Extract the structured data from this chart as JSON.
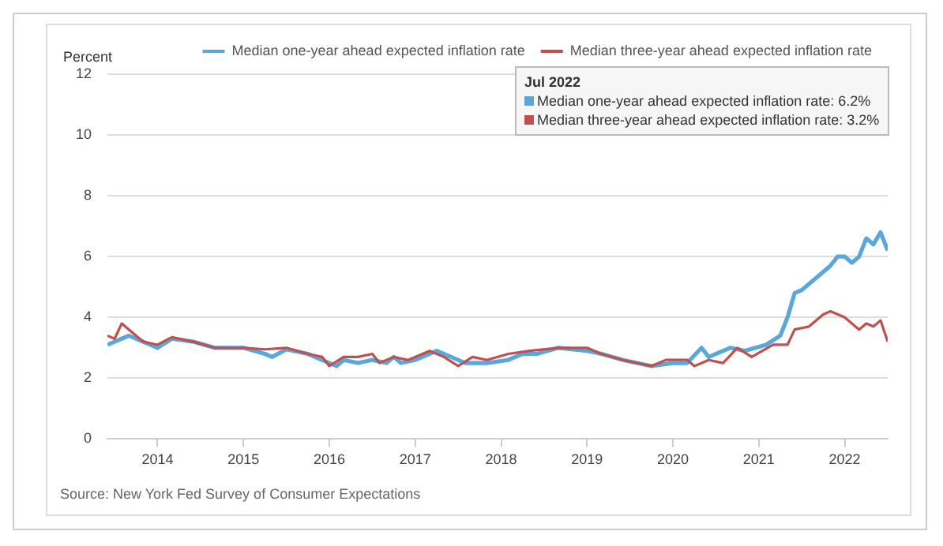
{
  "chart_data": {
    "type": "line",
    "ylabel": "Percent",
    "xlim": [
      "2013-06",
      "2022-07"
    ],
    "xticks": [
      "2014",
      "2015",
      "2016",
      "2017",
      "2018",
      "2019",
      "2020",
      "2021",
      "2022"
    ],
    "ylim": [
      0,
      12
    ],
    "yticks": [
      0,
      2,
      4,
      6,
      8,
      10,
      12
    ],
    "grid": "y",
    "legend": "top",
    "marker": "none",
    "line_style": "solid",
    "annotations": [
      "Jul 2022",
      "Median one-year ahead expected inflation rate: 6.2%",
      "Median three-year ahead expected inflation rate: 3.2%",
      "Source: New York Fed Survey of Consumer Expectations"
    ],
    "series": [
      {
        "name": "Median one-year ahead expected inflation rate",
        "color": "#5aa7dc",
        "x": [
          "2013-06",
          "2013-08",
          "2013-09",
          "2013-11",
          "2014-01",
          "2014-03",
          "2014-06",
          "2014-09",
          "2015-01",
          "2015-04",
          "2015-05",
          "2015-07",
          "2015-10",
          "2016-01",
          "2016-02",
          "2016-03",
          "2016-05",
          "2016-07",
          "2016-09",
          "2016-10",
          "2016-11",
          "2017-01",
          "2017-04",
          "2017-06",
          "2017-08",
          "2017-11",
          "2018-02",
          "2018-04",
          "2018-06",
          "2018-09",
          "2019-01",
          "2019-03",
          "2019-06",
          "2019-10",
          "2020-01",
          "2020-03",
          "2020-05",
          "2020-06",
          "2020-09",
          "2020-11",
          "2021-02",
          "2021-04",
          "2021-05",
          "2021-06",
          "2021-07",
          "2021-09",
          "2021-11",
          "2021-12",
          "2022-01",
          "2022-02",
          "2022-03",
          "2022-04",
          "2022-05",
          "2022-06",
          "2022-07"
        ],
        "values": [
          3.1,
          3.3,
          3.4,
          3.2,
          3.0,
          3.3,
          3.2,
          3.0,
          3.0,
          2.8,
          2.7,
          2.95,
          2.8,
          2.5,
          2.4,
          2.6,
          2.5,
          2.6,
          2.5,
          2.7,
          2.5,
          2.6,
          2.9,
          2.7,
          2.5,
          2.5,
          2.6,
          2.8,
          2.8,
          3.0,
          2.9,
          2.8,
          2.6,
          2.4,
          2.5,
          2.5,
          3.0,
          2.7,
          3.0,
          2.9,
          3.1,
          3.4,
          4.0,
          4.8,
          4.9,
          5.3,
          5.7,
          6.0,
          6.0,
          5.8,
          6.0,
          6.6,
          6.4,
          6.8,
          6.2
        ]
      },
      {
        "name": "Median three-year ahead expected inflation rate",
        "color": "#c0504d",
        "x": [
          "2013-06",
          "2013-07",
          "2013-08",
          "2013-09",
          "2013-11",
          "2014-01",
          "2014-03",
          "2014-06",
          "2014-09",
          "2015-01",
          "2015-04",
          "2015-07",
          "2015-10",
          "2015-12",
          "2016-01",
          "2016-03",
          "2016-05",
          "2016-07",
          "2016-08",
          "2016-10",
          "2016-12",
          "2017-03",
          "2017-05",
          "2017-07",
          "2017-09",
          "2017-11",
          "2018-02",
          "2018-05",
          "2018-09",
          "2019-01",
          "2019-03",
          "2019-06",
          "2019-10",
          "2019-12",
          "2020-03",
          "2020-04",
          "2020-06",
          "2020-08",
          "2020-10",
          "2020-12",
          "2021-03",
          "2021-05",
          "2021-06",
          "2021-08",
          "2021-10",
          "2021-11",
          "2022-01",
          "2022-03",
          "2022-04",
          "2022-05",
          "2022-06",
          "2022-07"
        ],
        "values": [
          3.4,
          3.3,
          3.8,
          3.6,
          3.2,
          3.1,
          3.35,
          3.2,
          3.0,
          3.0,
          2.95,
          3.0,
          2.8,
          2.7,
          2.4,
          2.7,
          2.7,
          2.8,
          2.5,
          2.7,
          2.6,
          2.9,
          2.7,
          2.4,
          2.7,
          2.6,
          2.8,
          2.9,
          3.0,
          3.0,
          2.8,
          2.6,
          2.4,
          2.6,
          2.6,
          2.4,
          2.6,
          2.5,
          3.0,
          2.7,
          3.1,
          3.1,
          3.6,
          3.7,
          4.1,
          4.2,
          4.0,
          3.6,
          3.8,
          3.7,
          3.9,
          3.2
        ]
      }
    ]
  }
}
